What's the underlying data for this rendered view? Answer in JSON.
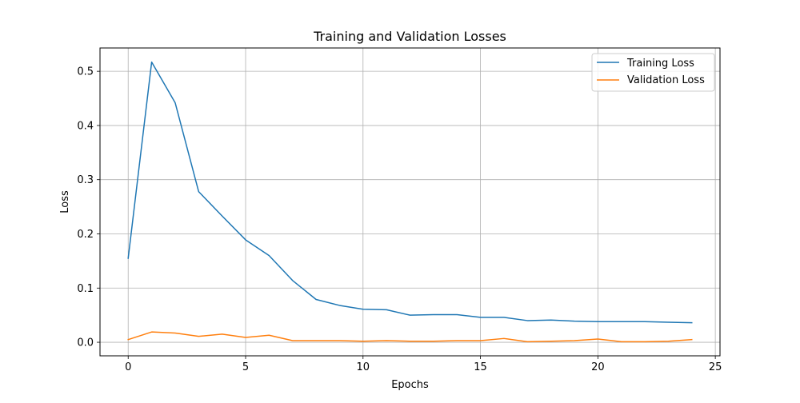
{
  "chart_data": {
    "type": "line",
    "title": "Training and Validation Losses",
    "xlabel": "Epochs",
    "ylabel": "Loss",
    "xlim": [
      -1.2,
      25.2
    ],
    "ylim": [
      -0.025,
      0.543
    ],
    "grid": true,
    "legend_position": "upper right",
    "x_ticks": [
      0,
      5,
      10,
      15,
      20,
      25
    ],
    "y_ticks": [
      0.0,
      0.1,
      0.2,
      0.3,
      0.4,
      0.5
    ],
    "x_tick_labels": [
      "0",
      "5",
      "10",
      "15",
      "20",
      "25"
    ],
    "y_tick_labels": [
      "0.0",
      "0.1",
      "0.2",
      "0.3",
      "0.4",
      "0.5"
    ],
    "x": [
      0,
      1,
      2,
      3,
      4,
      5,
      6,
      7,
      8,
      9,
      10,
      11,
      12,
      13,
      14,
      15,
      16,
      17,
      18,
      19,
      20,
      21,
      22,
      23,
      24
    ],
    "series": [
      {
        "name": "Training Loss",
        "color": "#1f77b4",
        "values": [
          0.155,
          0.517,
          0.442,
          0.278,
          0.233,
          0.189,
          0.16,
          0.114,
          0.079,
          0.068,
          0.061,
          0.06,
          0.05,
          0.051,
          0.051,
          0.046,
          0.046,
          0.04,
          0.041,
          0.039,
          0.038,
          0.038,
          0.038,
          0.037,
          0.036
        ]
      },
      {
        "name": "Validation Loss",
        "color": "#ff7f0e",
        "values": [
          0.005,
          0.019,
          0.017,
          0.011,
          0.015,
          0.009,
          0.013,
          0.003,
          0.003,
          0.003,
          0.002,
          0.003,
          0.002,
          0.002,
          0.003,
          0.003,
          0.007,
          0.001,
          0.002,
          0.003,
          0.006,
          0.001,
          0.001,
          0.002,
          0.005
        ]
      }
    ]
  }
}
